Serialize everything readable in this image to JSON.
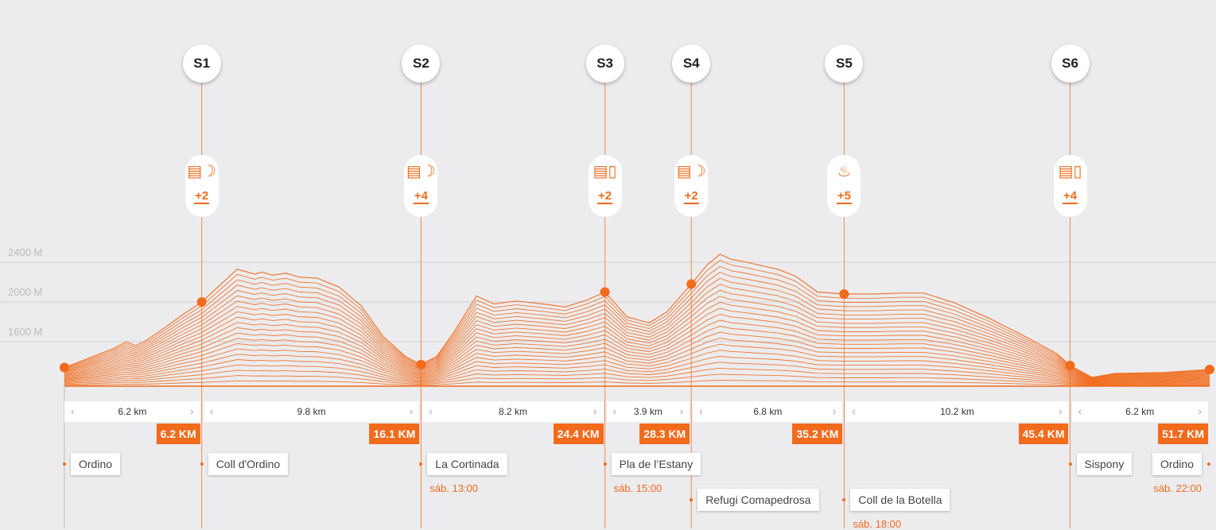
{
  "chart_data": {
    "type": "area",
    "title": "",
    "y_ticks": [
      "2400 M",
      "2000 M",
      "1600 M"
    ],
    "y_tick_values": [
      2400,
      2000,
      1600
    ],
    "ylim": [
      1200,
      2900
    ],
    "xlim": [
      0,
      51.7
    ],
    "grid": true,
    "profile": {
      "x": [
        0,
        2.2,
        2.8,
        3.2,
        3.6,
        4.4,
        5.2,
        6.2,
        7.8,
        8.6,
        8.9,
        9.4,
        10.0,
        10.6,
        11.4,
        12.4,
        13.4,
        14.4,
        15.4,
        16.1,
        16.8,
        17.6,
        18.6,
        19.4,
        20.4,
        21.6,
        22.6,
        23.6,
        24.4,
        25.4,
        26.4,
        27.2,
        28.3,
        29.0,
        29.6,
        30.1,
        30.6,
        31.4,
        32.2,
        33.0,
        34.0,
        35.2,
        36.6,
        37.8,
        38.8,
        40.2,
        41.8,
        43.4,
        44.8,
        45.4,
        46.4,
        47.4,
        49.6,
        51.7
      ],
      "y": [
        1340,
        1530,
        1600,
        1560,
        1600,
        1720,
        1850,
        2000,
        2330,
        2280,
        2300,
        2270,
        2290,
        2250,
        2240,
        2150,
        1960,
        1650,
        1450,
        1370,
        1450,
        1700,
        2060,
        1980,
        2010,
        1980,
        1950,
        2020,
        2100,
        1850,
        1790,
        1900,
        2180,
        2370,
        2480,
        2430,
        2410,
        2370,
        2330,
        2260,
        2100,
        2080,
        2080,
        2090,
        2090,
        1990,
        1830,
        1650,
        1480,
        1360,
        1240,
        1280,
        1290,
        1320
      ]
    },
    "stages": [
      {
        "id": "S1",
        "km": 6.2,
        "elev": 2000,
        "supply_icon": "drink-fruit-icon",
        "supply_count": "+2",
        "segment_km": "6.2 km",
        "cum_km": "6.2 KM"
      },
      {
        "id": "S2",
        "km": 16.1,
        "elev": 1370,
        "supply_icon": "drink-fruit-icon",
        "supply_count": "+4",
        "segment_km": "9.8 km",
        "cum_km": "16.1 KM"
      },
      {
        "id": "S3",
        "km": 24.4,
        "elev": 2100,
        "supply_icon": "drink-bottle-icon",
        "supply_count": "+2",
        "segment_km": "8.2 km",
        "cum_km": "24.4 KM"
      },
      {
        "id": "S4",
        "km": 28.3,
        "elev": 2180,
        "supply_icon": "drink-fruit-icon",
        "supply_count": "+2",
        "segment_km": "3.9 km",
        "cum_km": "28.3 KM"
      },
      {
        "id": "S5",
        "km": 35.2,
        "elev": 2080,
        "supply_icon": "hot-meal-icon",
        "supply_count": "+5",
        "segment_km": "6.8 km",
        "cum_km": "35.2 KM"
      },
      {
        "id": "S6",
        "km": 45.4,
        "elev": 1360,
        "supply_icon": "drink-bottle-icon",
        "supply_count": "+4",
        "segment_km": "10.2 km",
        "cum_km": "45.4 KM"
      }
    ],
    "finish": {
      "km": 51.7,
      "elev": 1320,
      "segment_km": "6.2 km",
      "cum_km": "51.7 KM"
    },
    "places": [
      {
        "name": "Ordino",
        "km": 0,
        "row": 1,
        "time": ""
      },
      {
        "name": "Coll d'Ordino",
        "km": 6.2,
        "row": 1,
        "time": ""
      },
      {
        "name": "La Cortinada",
        "km": 16.1,
        "row": 1,
        "time": "sáb. 13:00"
      },
      {
        "name": "Pla de l’Estany",
        "km": 24.4,
        "row": 1,
        "time": "sáb. 15:00"
      },
      {
        "name": "Refugi Comapedrosa",
        "km": 28.3,
        "row": 2,
        "time": ""
      },
      {
        "name": "Coll de la Botella",
        "km": 35.2,
        "row": 2,
        "time": "sáb. 18:00"
      },
      {
        "name": "Sispony",
        "km": 45.4,
        "row": 1,
        "time": ""
      },
      {
        "name": "Ordino",
        "km": 51.7,
        "row": 1,
        "time": "sáb. 22:00",
        "align": "right"
      }
    ]
  },
  "colors": {
    "accent": "#f26a1b",
    "background": "#ececee",
    "grid": "#d2d2d4"
  }
}
